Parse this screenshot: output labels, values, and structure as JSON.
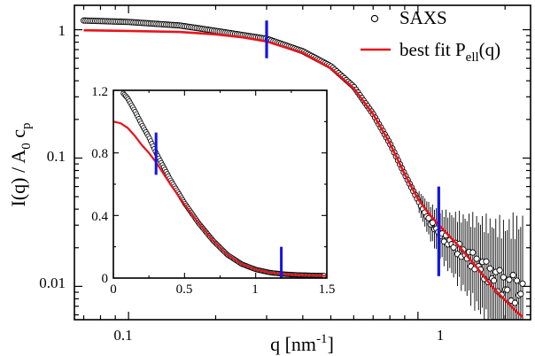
{
  "chart_data": [
    {
      "id": "main",
      "type": "scatter",
      "x_scale": "log",
      "y_scale": "log",
      "xlim": [
        0.065,
        2.45
      ],
      "ylim": [
        0.0055,
        1.55
      ],
      "xlabel": "q [nm",
      "xlabel_sup": "-1",
      "xlabel_tail": "]",
      "ylabel_main": "I(q) / A",
      "ylabel_sub1": "0",
      "ylabel_mid": " c",
      "ylabel_sub2": "p",
      "x_ticks": [
        {
          "value": 0.1,
          "label": "0.1"
        },
        {
          "value": 1,
          "label": "1"
        }
      ],
      "y_ticks": [
        {
          "value": 1,
          "label": "1"
        },
        {
          "value": 0.1,
          "label": "0.1"
        },
        {
          "value": 0.01,
          "label": "0.01"
        }
      ],
      "legend_position": "top-right",
      "legend": [
        {
          "label": "SAXS",
          "marker": "open-circle"
        },
        {
          "label": "best fit P",
          "sub": "ell",
          "tail": "(q)",
          "marker": "line"
        }
      ],
      "series": [
        {
          "name": "SAXS",
          "marker": "open-circle",
          "x_range": [
            0.07,
            2.3
          ],
          "y_at_x": [
            [
              0.07,
              1.18
            ],
            [
              0.1,
              1.15
            ],
            [
              0.15,
              1.08
            ],
            [
              0.2,
              0.98
            ],
            [
              0.3,
              0.85
            ],
            [
              0.4,
              0.68
            ],
            [
              0.5,
              0.52
            ],
            [
              0.6,
              0.36
            ],
            [
              0.7,
              0.22
            ],
            [
              0.8,
              0.13
            ],
            [
              0.9,
              0.075
            ],
            [
              1.0,
              0.047
            ],
            [
              1.1,
              0.032
            ],
            [
              1.2,
              0.025
            ],
            [
              1.4,
              0.019
            ],
            [
              1.6,
              0.015
            ],
            [
              1.8,
              0.012
            ],
            [
              2.0,
              0.01
            ],
            [
              2.3,
              0.009
            ]
          ],
          "error_bars_from_q": 1.0
        },
        {
          "name": "best fit P_ell(q)",
          "color": "#e8141c",
          "x": [
            0.07,
            0.1,
            0.15,
            0.2,
            0.25,
            0.3,
            0.4,
            0.5,
            0.6,
            0.7,
            0.8,
            0.9,
            1.0,
            1.1,
            1.2,
            1.4,
            1.6,
            1.8,
            2.0,
            2.2,
            2.3
          ],
          "y": [
            0.99,
            0.98,
            0.96,
            0.92,
            0.87,
            0.81,
            0.66,
            0.5,
            0.35,
            0.22,
            0.13,
            0.075,
            0.048,
            0.036,
            0.029,
            0.02,
            0.014,
            0.01,
            0.0078,
            0.0063,
            0.0058
          ]
        }
      ],
      "markers": [
        {
          "x": 0.3,
          "y_range": [
            0.6,
            1.18
          ],
          "color": "#1414e6"
        },
        {
          "x": 1.18,
          "y_range": [
            0.012,
            0.06
          ],
          "color": "#1414e6"
        }
      ]
    },
    {
      "id": "inset",
      "type": "scatter",
      "x_scale": "linear",
      "y_scale": "linear",
      "xlim": [
        0,
        1.5
      ],
      "ylim": [
        0,
        1.2
      ],
      "x_ticks": [
        {
          "value": 0,
          "label": "0"
        },
        {
          "value": 0.5,
          "label": "0.5"
        },
        {
          "value": 1,
          "label": "1"
        },
        {
          "value": 1.5,
          "label": "1.5"
        }
      ],
      "y_ticks": [
        {
          "value": 0,
          "label": "0"
        },
        {
          "value": 0.4,
          "label": "0.4"
        },
        {
          "value": 0.8,
          "label": "0.8"
        },
        {
          "value": 1.2,
          "label": "1.2"
        }
      ],
      "series": [
        {
          "name": "SAXS",
          "marker": "open-circle",
          "x_range": [
            0.07,
            1.48
          ],
          "y_at_x": [
            [
              0.07,
              1.18
            ],
            [
              0.1,
              1.15
            ],
            [
              0.15,
              1.07
            ],
            [
              0.2,
              0.98
            ],
            [
              0.25,
              0.9
            ],
            [
              0.3,
              0.8
            ],
            [
              0.4,
              0.63
            ],
            [
              0.5,
              0.48
            ],
            [
              0.6,
              0.35
            ],
            [
              0.7,
              0.24
            ],
            [
              0.8,
              0.15
            ],
            [
              0.9,
              0.09
            ],
            [
              1.0,
              0.055
            ],
            [
              1.1,
              0.035
            ],
            [
              1.2,
              0.025
            ],
            [
              1.3,
              0.02
            ],
            [
              1.48,
              0.016
            ]
          ]
        },
        {
          "name": "best fit P_ell(q)",
          "color": "#e8141c",
          "x": [
            0,
            0.05,
            0.1,
            0.15,
            0.2,
            0.25,
            0.3,
            0.4,
            0.5,
            0.6,
            0.7,
            0.8,
            0.9,
            1.0,
            1.1,
            1.2,
            1.3,
            1.4,
            1.5
          ],
          "y": [
            1.0,
            0.99,
            0.96,
            0.91,
            0.85,
            0.8,
            0.74,
            0.6,
            0.47,
            0.35,
            0.24,
            0.15,
            0.09,
            0.055,
            0.035,
            0.025,
            0.019,
            0.016,
            0.014
          ]
        }
      ],
      "markers": [
        {
          "x": 0.3,
          "y_range": [
            0.66,
            0.93
          ],
          "color": "#1414e6"
        },
        {
          "x": 1.18,
          "y_range": [
            0.0,
            0.2
          ],
          "color": "#1414e6"
        }
      ]
    }
  ]
}
